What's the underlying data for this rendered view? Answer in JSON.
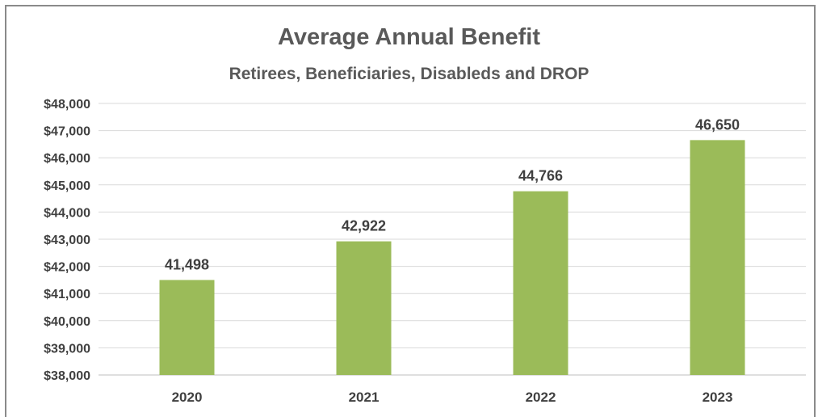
{
  "chart_data": {
    "type": "bar",
    "title": "Average Annual Benefit",
    "subtitle": "Retirees, Beneficiaries, Disableds and DROP",
    "categories": [
      "2020",
      "2021",
      "2022",
      "2023"
    ],
    "values": [
      41498,
      42922,
      44766,
      46650
    ],
    "data_labels": [
      "41,498",
      "42,922",
      "44,766",
      "46,650"
    ],
    "ylim": [
      38000,
      48000
    ],
    "yticks": [
      38000,
      39000,
      40000,
      41000,
      42000,
      43000,
      44000,
      45000,
      46000,
      47000,
      48000
    ],
    "ytick_labels": [
      "$38,000",
      "$39,000",
      "$40,000",
      "$41,000",
      "$42,000",
      "$43,000",
      "$44,000",
      "$45,000",
      "$46,000",
      "$47,000",
      "$48,000"
    ],
    "bar_color": "#9BBB59",
    "grid": true,
    "legend": "none"
  }
}
